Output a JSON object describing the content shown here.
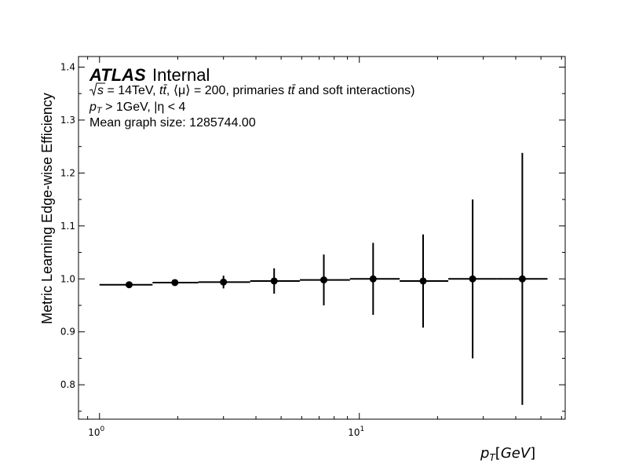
{
  "chart_data": {
    "type": "scatter",
    "xlabel": "p_T[GeV]",
    "ylabel": "Metric Learning Edge-wise Efficiency",
    "xscale": "log",
    "xlim": [
      0.83,
      62
    ],
    "ylim": [
      0.735,
      1.42
    ],
    "yticks": [
      "0.8",
      "0.9",
      "1.0",
      "1.1",
      "1.2",
      "1.3",
      "1.4"
    ],
    "xticks": [
      {
        "base": "10",
        "exp": "0"
      },
      {
        "base": "10",
        "exp": "1"
      }
    ],
    "grid": false,
    "annotations": {
      "atlas": "ATLAS",
      "internal": "Internal",
      "line1": {
        "sqrt_s": "s",
        "energy": " = 14TeV, ",
        "ttbar_1": "tt̄",
        "mu": ", ⟨μ⟩ = 200, primaries ",
        "ttbar_2": "tt̄",
        "rest": " and soft interactions)"
      },
      "line2": {
        "pt": "p",
        "pt_sub": "T",
        "cut": " > 1GeV, |η < 4"
      },
      "line3": "Mean graph size: 1285744.00"
    },
    "points": [
      {
        "x": 1.3,
        "y": 0.989,
        "xlo": 1.0,
        "xhi": 1.6,
        "ylo": 0.986,
        "yhi": 0.992
      },
      {
        "x": 1.95,
        "y": 0.993,
        "xlo": 1.6,
        "xhi": 2.4,
        "ylo": 0.988,
        "yhi": 0.998
      },
      {
        "x": 3.0,
        "y": 0.994,
        "xlo": 2.4,
        "xhi": 3.8,
        "ylo": 0.982,
        "yhi": 1.006
      },
      {
        "x": 4.7,
        "y": 0.996,
        "xlo": 3.8,
        "xhi": 5.9,
        "ylo": 0.972,
        "yhi": 1.02
      },
      {
        "x": 7.3,
        "y": 0.998,
        "xlo": 5.9,
        "xhi": 9.2,
        "ylo": 0.95,
        "yhi": 1.046
      },
      {
        "x": 11.3,
        "y": 1.0,
        "xlo": 9.2,
        "xhi": 14.3,
        "ylo": 0.932,
        "yhi": 1.068
      },
      {
        "x": 17.6,
        "y": 0.996,
        "xlo": 14.3,
        "xhi": 22.0,
        "ylo": 0.908,
        "yhi": 1.084
      },
      {
        "x": 27.3,
        "y": 1.0,
        "xlo": 22.0,
        "xhi": 34.0,
        "ylo": 0.85,
        "yhi": 1.15
      },
      {
        "x": 42.4,
        "y": 1.0,
        "xlo": 34.0,
        "xhi": 53.0,
        "ylo": 0.762,
        "yhi": 1.238
      }
    ],
    "marker_color": "#000000"
  }
}
